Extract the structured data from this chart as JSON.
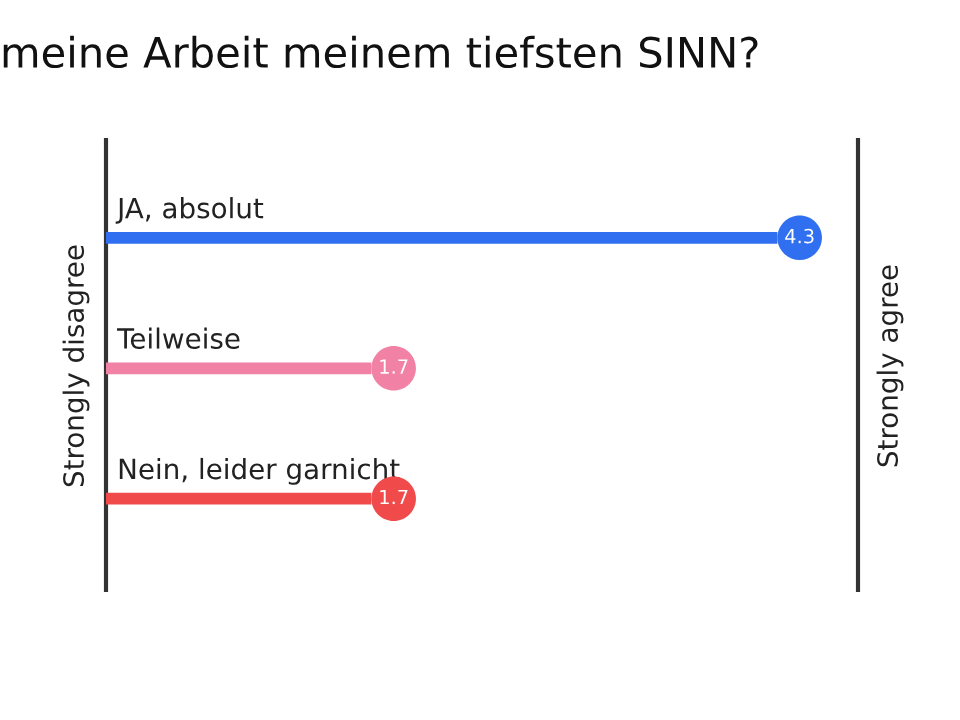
{
  "chart_data": {
    "type": "bar",
    "orientation": "horizontal",
    "title": "meine Arbeit meinem tiefsten SINN?",
    "categories": [
      "JA, absolut",
      "Teilweise",
      "Nein, leider garnicht"
    ],
    "values": [
      4.3,
      1.7,
      1.7
    ],
    "colors": [
      "#2f6ff0",
      "#f282a5",
      "#f04a4a"
    ],
    "data_labels": true,
    "annotations": [
      "Strongly disagree",
      "Strongly agree"
    ]
  }
}
